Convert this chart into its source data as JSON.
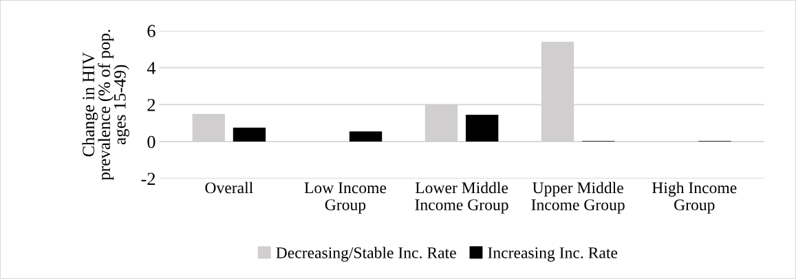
{
  "chart_data": {
    "type": "bar",
    "ylabel": "Change in HIV\nprevalence (% of pop.\nages 15-49)",
    "categories": [
      "Overall",
      "Low Income\nGroup",
      "Lower Middle\nIncome Group",
      "Upper Middle\nIncome Group",
      "High Income\nGroup"
    ],
    "series": [
      {
        "name": "Decreasing/Stable Inc. Rate",
        "color": "#d0cece",
        "values": [
          1.5,
          null,
          2.0,
          5.4,
          null
        ]
      },
      {
        "name": "Increasing Inc. Rate",
        "color": "#000000",
        "values": [
          0.75,
          0.55,
          1.45,
          0.03,
          0.03
        ]
      }
    ],
    "ylim": [
      -2,
      6
    ],
    "yticks": [
      {
        "value": -2,
        "label": "-2"
      },
      0,
      2,
      4,
      6
    ],
    "grid": "y",
    "legend": "bottom"
  }
}
